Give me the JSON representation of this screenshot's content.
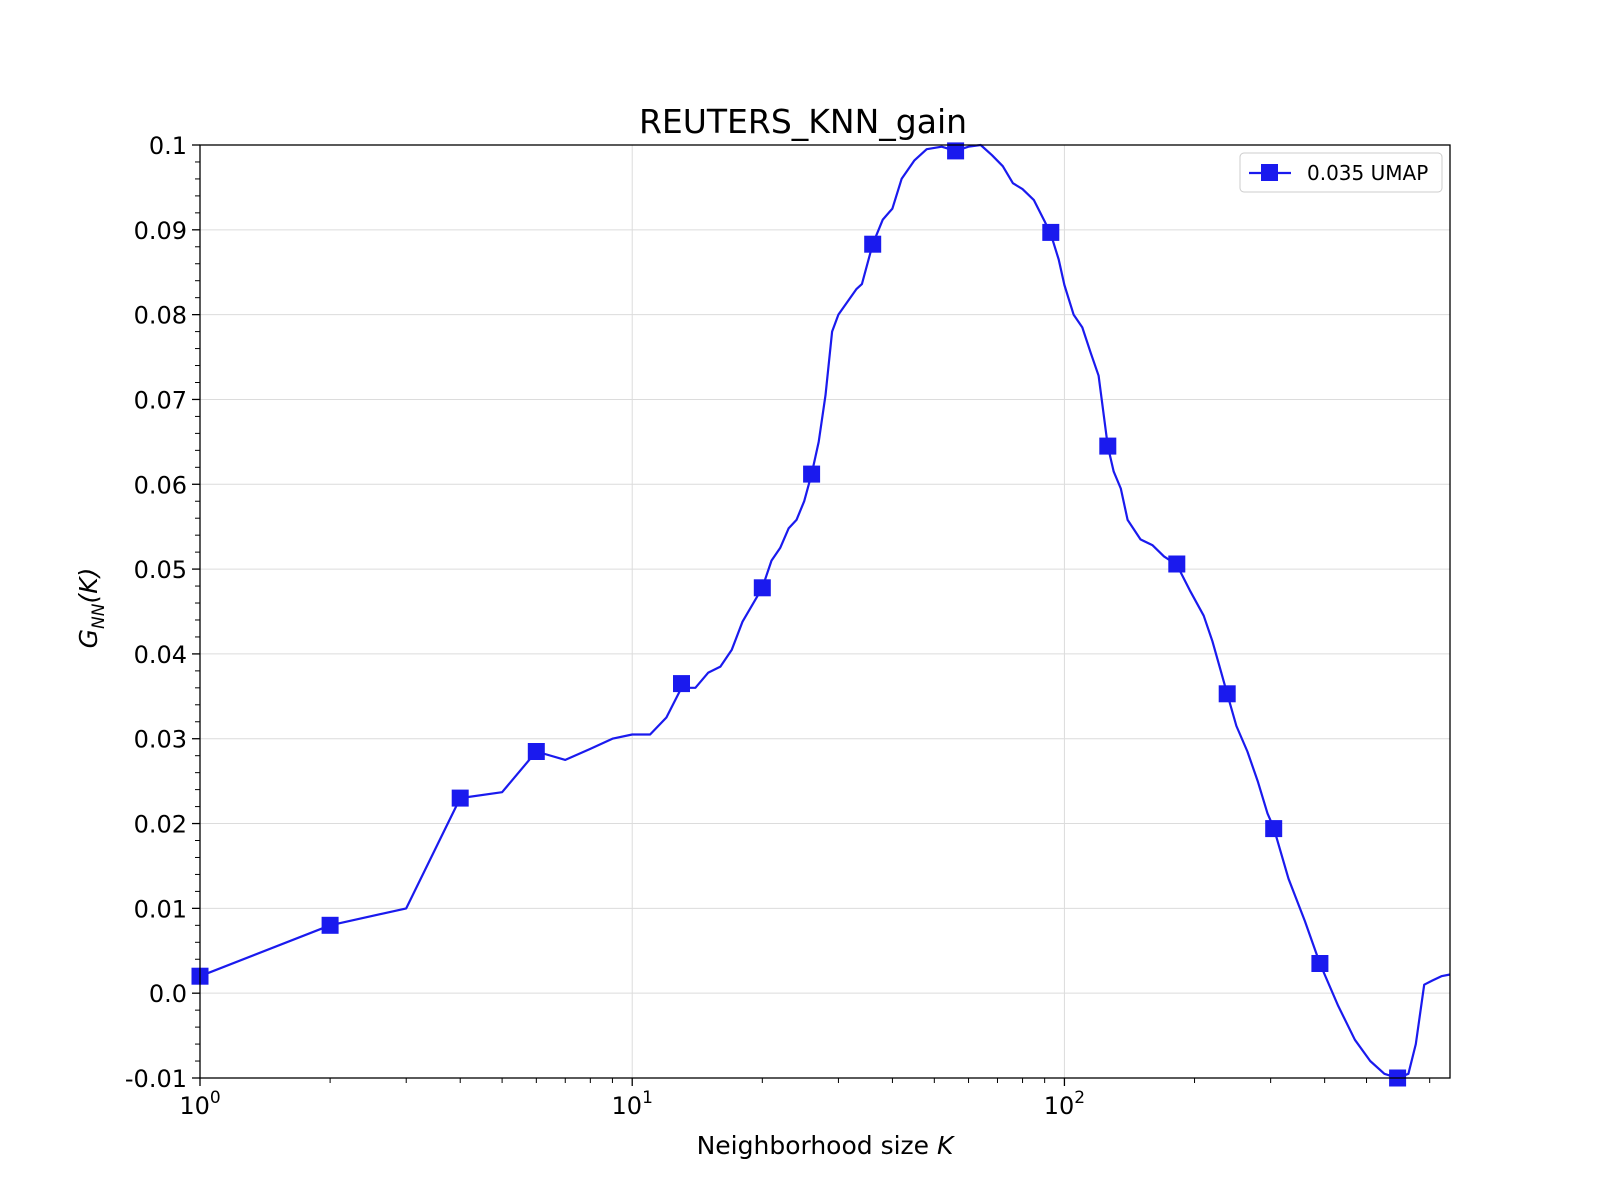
{
  "chart_data": {
    "type": "line",
    "title": "REUTERS_KNN_gain",
    "xlabel": "Neighborhood size K",
    "xlabel_parts": {
      "text": "Neighborhood size ",
      "var": "K"
    },
    "ylabel": "G_NN(K)",
    "ylabel_parts": {
      "main": "G",
      "sub": "NN",
      "rest": "(K)"
    },
    "xscale": "log",
    "xlim": [
      1,
      780
    ],
    "ylim": [
      -0.01,
      0.1
    ],
    "grid": true,
    "legend_position": "top-right",
    "x_ticks": [
      {
        "value": 1,
        "base": "10",
        "exp": "0"
      },
      {
        "value": 10,
        "base": "10",
        "exp": "1"
      },
      {
        "value": 100,
        "base": "10",
        "exp": "2"
      }
    ],
    "y_ticks": [
      {
        "value": -0.01,
        "label": "-0.01"
      },
      {
        "value": 0.0,
        "label": "0.0"
      },
      {
        "value": 0.01,
        "label": "0.01"
      },
      {
        "value": 0.02,
        "label": "0.02"
      },
      {
        "value": 0.03,
        "label": "0.03"
      },
      {
        "value": 0.04,
        "label": "0.04"
      },
      {
        "value": 0.05,
        "label": "0.05"
      },
      {
        "value": 0.06,
        "label": "0.06"
      },
      {
        "value": 0.07,
        "label": "0.07"
      },
      {
        "value": 0.08,
        "label": "0.08"
      },
      {
        "value": 0.09,
        "label": "0.09"
      },
      {
        "value": 0.1,
        "label": "0.1"
      }
    ],
    "series": [
      {
        "name": "0.035 UMAP",
        "color": "#1a1aee",
        "marker": "square",
        "line": [
          [
            1,
            0.002
          ],
          [
            2,
            0.008
          ],
          [
            3,
            0.01
          ],
          [
            4,
            0.023
          ],
          [
            5,
            0.0237
          ],
          [
            6,
            0.0285
          ],
          [
            7,
            0.0275
          ],
          [
            8,
            0.0288
          ],
          [
            9,
            0.03
          ],
          [
            10,
            0.0305
          ],
          [
            11,
            0.0305
          ],
          [
            12,
            0.0325
          ],
          [
            13,
            0.036
          ],
          [
            14,
            0.036
          ],
          [
            15,
            0.0378
          ],
          [
            16,
            0.0385
          ],
          [
            17,
            0.0405
          ],
          [
            18,
            0.0438
          ],
          [
            20,
            0.0478
          ],
          [
            21,
            0.051
          ],
          [
            22,
            0.0525
          ],
          [
            23,
            0.0548
          ],
          [
            24,
            0.0558
          ],
          [
            25,
            0.058
          ],
          [
            26,
            0.0612
          ],
          [
            27,
            0.065
          ],
          [
            28,
            0.0705
          ],
          [
            29,
            0.078
          ],
          [
            30,
            0.08
          ],
          [
            33,
            0.083
          ],
          [
            34,
            0.0836
          ],
          [
            36,
            0.0883
          ],
          [
            38,
            0.0912
          ],
          [
            40,
            0.0925
          ],
          [
            42,
            0.096
          ],
          [
            45,
            0.0982
          ],
          [
            48,
            0.0995
          ],
          [
            52,
            0.0998
          ],
          [
            56,
            0.0993
          ],
          [
            60,
            0.0998
          ],
          [
            64,
            0.1
          ],
          [
            68,
            0.0988
          ],
          [
            72,
            0.0975
          ],
          [
            76,
            0.0955
          ],
          [
            80,
            0.0948
          ],
          [
            85,
            0.0935
          ],
          [
            90,
            0.091
          ],
          [
            93,
            0.0895
          ],
          [
            97,
            0.0865
          ],
          [
            100,
            0.0835
          ],
          [
            105,
            0.08
          ],
          [
            110,
            0.0785
          ],
          [
            115,
            0.0755
          ],
          [
            120,
            0.0728
          ],
          [
            126,
            0.0645
          ],
          [
            130,
            0.0615
          ],
          [
            135,
            0.0595
          ],
          [
            140,
            0.0558
          ],
          [
            150,
            0.0535
          ],
          [
            160,
            0.0528
          ],
          [
            170,
            0.0515
          ],
          [
            182,
            0.0505
          ],
          [
            195,
            0.0475
          ],
          [
            210,
            0.0445
          ],
          [
            220,
            0.0415
          ],
          [
            230,
            0.038
          ],
          [
            238,
            0.0353
          ],
          [
            250,
            0.0315
          ],
          [
            265,
            0.0285
          ],
          [
            280,
            0.025
          ],
          [
            295,
            0.0212
          ],
          [
            305,
            0.0195
          ],
          [
            330,
            0.0135
          ],
          [
            360,
            0.0085
          ],
          [
            390,
            0.0035
          ],
          [
            430,
            -0.0015
          ],
          [
            470,
            -0.0055
          ],
          [
            510,
            -0.008
          ],
          [
            550,
            -0.0095
          ],
          [
            590,
            -0.01
          ],
          [
            625,
            -0.0095
          ],
          [
            650,
            -0.006
          ],
          [
            680,
            0.001
          ],
          [
            710,
            0.0015
          ],
          [
            745,
            0.002
          ],
          [
            780,
            0.0022
          ]
        ],
        "markers": [
          [
            1,
            0.002
          ],
          [
            2,
            0.008
          ],
          [
            4,
            0.023
          ],
          [
            6,
            0.0285
          ],
          [
            13,
            0.0365
          ],
          [
            20,
            0.0478
          ],
          [
            26,
            0.0612
          ],
          [
            36,
            0.0883
          ],
          [
            56,
            0.0993
          ],
          [
            93,
            0.0897
          ],
          [
            126,
            0.0645
          ],
          [
            182,
            0.0506
          ],
          [
            238,
            0.0353
          ],
          [
            305,
            0.0194
          ],
          [
            390,
            0.0035
          ],
          [
            590,
            -0.01
          ]
        ]
      }
    ]
  }
}
